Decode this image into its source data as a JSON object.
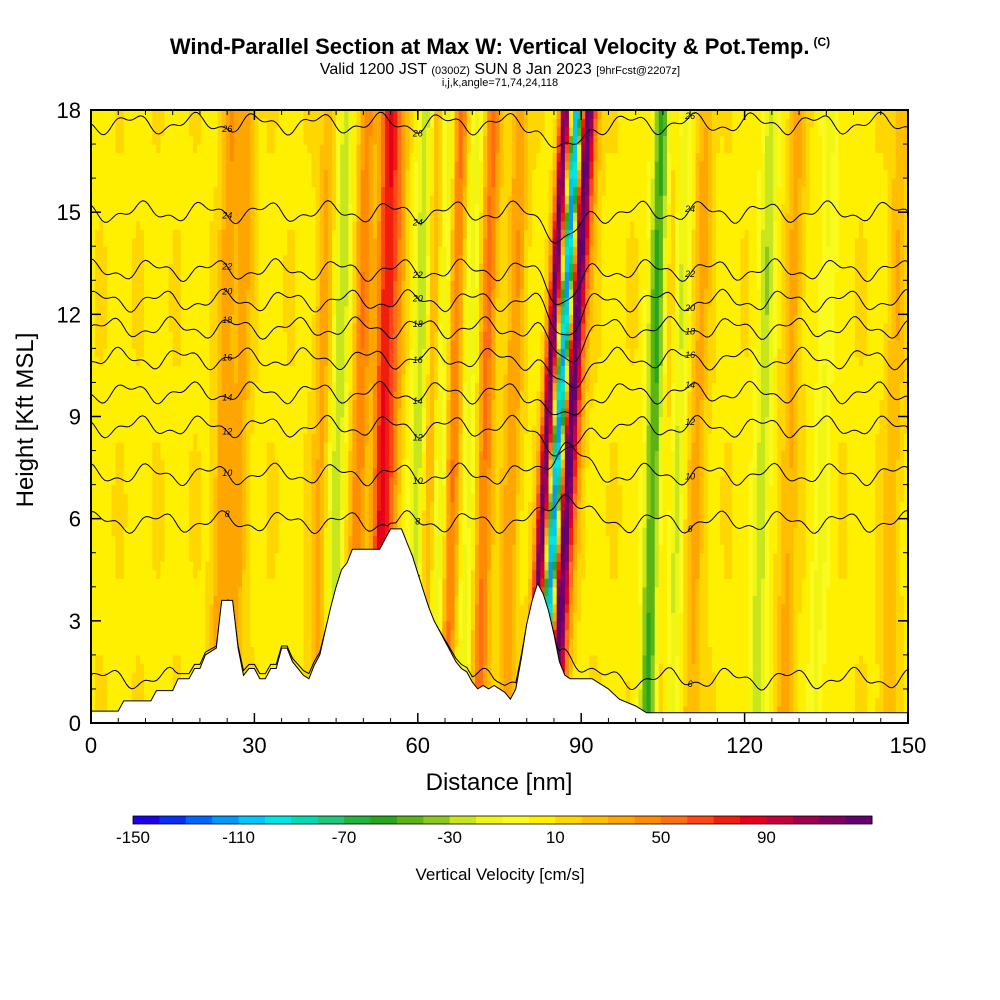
{
  "header": {
    "title": "Wind-Parallel Section at Max W: Vertical Velocity & Pot.Temp.",
    "copyright": "(C)",
    "valid_prefix": "Valid 1200 JST",
    "valid_utc": "(0300Z)",
    "valid_date": "SUN 8 Jan 2023",
    "forecast_info": "[9hrFcst@2207z]",
    "indices": "i,j,k,angle=71,74,24,118"
  },
  "chart_data": {
    "type": "heatmap",
    "xlabel": "Distance [nm]",
    "ylabel": "Height [Kft MSL]",
    "xlim": [
      0,
      150
    ],
    "ylim": [
      0,
      18
    ],
    "x_ticks": [
      "0",
      "30",
      "60",
      "90",
      "120",
      "150"
    ],
    "y_ticks": [
      "0",
      "3",
      "6",
      "9",
      "12",
      "15",
      "18"
    ],
    "colorbar": {
      "title": "Vertical Velocity [cm/s]",
      "tick_labels": [
        "-150",
        "-110",
        "-70",
        "-30",
        "10",
        "50",
        "90"
      ],
      "range": [
        -150,
        130
      ],
      "step": 10,
      "colors": [
        "#1c00e8",
        "#0a2ef5",
        "#0066ff",
        "#0099ff",
        "#00c6ff",
        "#00e5e5",
        "#00dcb0",
        "#1ec878",
        "#22b43c",
        "#28a61c",
        "#5ab414",
        "#8cc81e",
        "#c8e61e",
        "#f0f514",
        "#fafa1e",
        "#fff000",
        "#ffd700",
        "#ffbe00",
        "#ffa500",
        "#ff8c00",
        "#ff6e14",
        "#ff4614",
        "#f01e0a",
        "#e6001e",
        "#c8003c",
        "#a00050",
        "#82005f",
        "#64006e"
      ]
    },
    "updrafts": [
      {
        "x": 24,
        "w": 30
      },
      {
        "x": 27,
        "w": 25
      },
      {
        "x": 42,
        "w": 25
      },
      {
        "x": 49,
        "w": 40
      },
      {
        "x": 53,
        "w": 65
      },
      {
        "x": 55,
        "w": 35
      },
      {
        "x": 62,
        "w": 35
      },
      {
        "x": 66,
        "w": 50
      },
      {
        "x": 72,
        "w": 45
      },
      {
        "x": 77,
        "w": 30
      },
      {
        "x": 84,
        "w": 120
      },
      {
        "x": 88,
        "w": 105
      },
      {
        "x": 89,
        "w": 45
      },
      {
        "x": 106,
        "w": 30
      },
      {
        "x": 111,
        "w": 25
      },
      {
        "x": 128,
        "w": 25
      },
      {
        "x": 147,
        "w": 20
      }
    ],
    "downdrafts": [
      {
        "x": 45,
        "w": -35
      },
      {
        "x": 64,
        "w": -40
      },
      {
        "x": 69,
        "w": -25
      },
      {
        "x": 86,
        "w": -130
      },
      {
        "x": 103,
        "w": -60
      },
      {
        "x": 107,
        "w": -45
      },
      {
        "x": 123,
        "w": -35
      },
      {
        "x": 134,
        "w": -20
      },
      {
        "x": 60,
        "w": -40
      }
    ],
    "terrain": [
      [
        0,
        0.35
      ],
      [
        5,
        0.35
      ],
      [
        6,
        0.65
      ],
      [
        11,
        0.65
      ],
      [
        12,
        0.95
      ],
      [
        15,
        0.95
      ],
      [
        16,
        1.3
      ],
      [
        18,
        1.3
      ],
      [
        19,
        1.6
      ],
      [
        20,
        1.6
      ],
      [
        21,
        2.0
      ],
      [
        23,
        2.2
      ],
      [
        24,
        3.6
      ],
      [
        26,
        3.6
      ],
      [
        27,
        2.2
      ],
      [
        28,
        1.4
      ],
      [
        29,
        1.6
      ],
      [
        30,
        1.6
      ],
      [
        31,
        1.3
      ],
      [
        32,
        1.3
      ],
      [
        33,
        1.6
      ],
      [
        34,
        1.6
      ],
      [
        35,
        2.2
      ],
      [
        36,
        2.2
      ],
      [
        37,
        1.8
      ],
      [
        38,
        1.6
      ],
      [
        39,
        1.4
      ],
      [
        40,
        1.3
      ],
      [
        41,
        1.7
      ],
      [
        42,
        2.0
      ],
      [
        43,
        2.7
      ],
      [
        44,
        3.4
      ],
      [
        45,
        4.0
      ],
      [
        46,
        4.5
      ],
      [
        47,
        4.7
      ],
      [
        48,
        5.1
      ],
      [
        53,
        5.1
      ],
      [
        54,
        5.4
      ],
      [
        55,
        5.7
      ],
      [
        57,
        5.7
      ],
      [
        58,
        5.3
      ],
      [
        59,
        4.9
      ],
      [
        60,
        4.4
      ],
      [
        61,
        3.9
      ],
      [
        62,
        3.4
      ],
      [
        63,
        3.0
      ],
      [
        64,
        2.7
      ],
      [
        65,
        2.4
      ],
      [
        66,
        2.1
      ],
      [
        67,
        1.8
      ],
      [
        68,
        1.6
      ],
      [
        69,
        1.5
      ],
      [
        70,
        1.2
      ],
      [
        71,
        1.0
      ],
      [
        72,
        1.1
      ],
      [
        73,
        1.0
      ],
      [
        74,
        1.1
      ],
      [
        75,
        1.0
      ],
      [
        76,
        0.9
      ],
      [
        77,
        0.7
      ],
      [
        78,
        1.0
      ],
      [
        79,
        1.9
      ],
      [
        80,
        2.9
      ],
      [
        81,
        3.6
      ],
      [
        82,
        4.1
      ],
      [
        83,
        3.8
      ],
      [
        84,
        3.3
      ],
      [
        85,
        2.6
      ],
      [
        86,
        1.8
      ],
      [
        87,
        1.4
      ],
      [
        88,
        1.3
      ],
      [
        92,
        1.3
      ],
      [
        95,
        1.0
      ],
      [
        97,
        0.7
      ],
      [
        100,
        0.5
      ],
      [
        102,
        0.3
      ],
      [
        150,
        0.3
      ]
    ],
    "theta_contours": [
      {
        "label": "6",
        "base": 1.3
      },
      {
        "label": "8",
        "base": 5.9
      },
      {
        "label": "10",
        "base": 7.3
      },
      {
        "label": "12",
        "base": 8.7
      },
      {
        "label": "14",
        "base": 9.7
      },
      {
        "label": "16",
        "base": 10.7
      },
      {
        "label": "18",
        "base": 11.6
      },
      {
        "label": "20",
        "base": 12.4
      },
      {
        "label": "22",
        "base": 13.3
      },
      {
        "label": "24",
        "base": 15.0
      },
      {
        "label": "26",
        "base": 17.6
      }
    ]
  }
}
